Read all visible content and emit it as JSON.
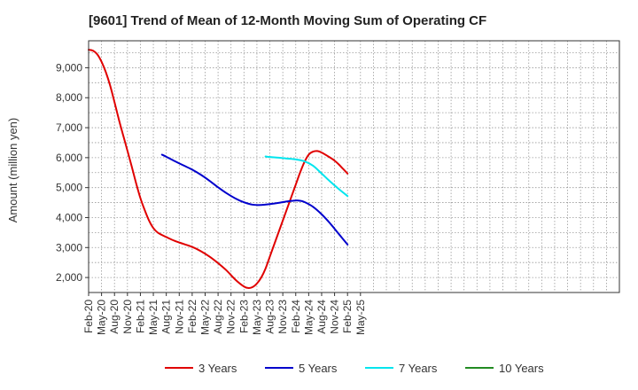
{
  "chart_data": {
    "type": "line",
    "title": "[9601]  Trend of Mean of 12-Month Moving Sum of Operating CF",
    "xlabel": "",
    "ylabel": "Amount (million yen)",
    "ylim": [
      1500,
      9900
    ],
    "yticks": [
      2000,
      3000,
      4000,
      5000,
      6000,
      7000,
      8000,
      9000
    ],
    "ytick_labels": [
      "2,000",
      "3,000",
      "4,000",
      "5,000",
      "6,000",
      "7,000",
      "8,000",
      "9,000"
    ],
    "x_range_months": [
      0,
      123
    ],
    "xticks": [
      0,
      3,
      6,
      9,
      12,
      15,
      18,
      21,
      24,
      27,
      30,
      33,
      36,
      39,
      42,
      45,
      48,
      51,
      54,
      57,
      60,
      63
    ],
    "xtick_labels": [
      "Feb-20",
      "May-20",
      "Aug-20",
      "Nov-20",
      "Feb-21",
      "May-21",
      "Aug-21",
      "Nov-21",
      "Feb-22",
      "May-22",
      "Aug-22",
      "Nov-22",
      "Feb-23",
      "May-23",
      "Aug-23",
      "Nov-23",
      "Feb-24",
      "May-24",
      "Aug-24",
      "Nov-24",
      "Feb-25",
      "May-25"
    ],
    "grid": true,
    "legend": "bottom",
    "series": [
      {
        "name": "3 Years",
        "color": "#e00000",
        "x": [
          0,
          1,
          2,
          3,
          4,
          5,
          6,
          7,
          8,
          9,
          10,
          11,
          12,
          13,
          14,
          15,
          16,
          17,
          18,
          20,
          22,
          24,
          26,
          28,
          30,
          32,
          34,
          36,
          37,
          38,
          39,
          40,
          41,
          42,
          44,
          46,
          48,
          49,
          50,
          51,
          52,
          53,
          54,
          56,
          57,
          58,
          59,
          60
        ],
        "values": [
          9600,
          9570,
          9450,
          9200,
          8850,
          8400,
          7850,
          7280,
          6750,
          6230,
          5700,
          5150,
          4650,
          4250,
          3900,
          3650,
          3500,
          3420,
          3350,
          3220,
          3120,
          3020,
          2880,
          2700,
          2480,
          2230,
          1930,
          1700,
          1650,
          1680,
          1800,
          2000,
          2300,
          2700,
          3500,
          4300,
          5100,
          5500,
          5850,
          6100,
          6200,
          6220,
          6170,
          6000,
          5900,
          5770,
          5620,
          5470
        ]
      },
      {
        "name": "5 Years",
        "color": "#0000cc",
        "x": [
          17,
          18,
          20,
          22,
          24,
          26,
          28,
          30,
          32,
          34,
          36,
          38,
          40,
          42,
          44,
          46,
          48,
          49,
          50,
          52,
          54,
          56,
          58,
          60
        ],
        "values": [
          6100,
          6030,
          5880,
          5740,
          5600,
          5430,
          5230,
          5010,
          4810,
          4640,
          4510,
          4430,
          4420,
          4450,
          4490,
          4540,
          4570,
          4560,
          4520,
          4360,
          4110,
          3800,
          3450,
          3100
        ]
      },
      {
        "name": "7 Years",
        "color": "#00e5ee",
        "x": [
          41,
          42,
          44,
          46,
          48,
          50,
          52,
          54,
          56,
          58,
          60
        ],
        "values": [
          6040,
          6020,
          6000,
          5970,
          5940,
          5880,
          5730,
          5470,
          5200,
          4950,
          4720
        ]
      },
      {
        "name": "10 Years",
        "color": "#228b22",
        "x": [],
        "values": []
      }
    ]
  }
}
